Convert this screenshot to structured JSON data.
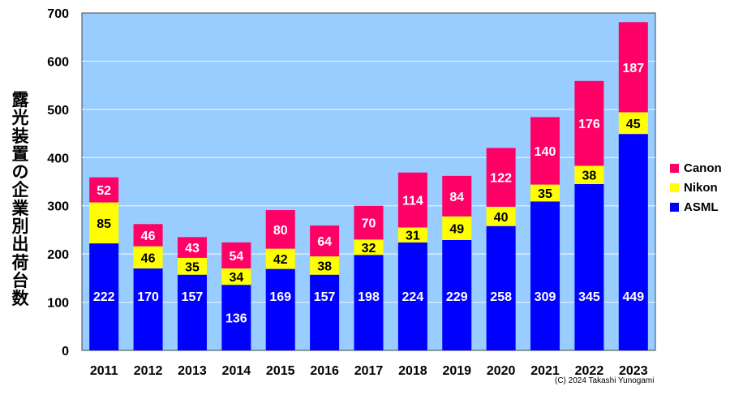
{
  "chart_data": {
    "type": "bar",
    "stacked": true,
    "title": "",
    "xlabel": "",
    "ylabel": "露光装置の企業別出荷台数",
    "ylim": [
      0,
      700
    ],
    "yticks": [
      0,
      100,
      200,
      300,
      400,
      500,
      600,
      700
    ],
    "grid": true,
    "legend_position": "right",
    "categories": [
      "2011",
      "2012",
      "2013",
      "2014",
      "2015",
      "2016",
      "2017",
      "2018",
      "2019",
      "2020",
      "2021",
      "2022",
      "2023"
    ],
    "series": [
      {
        "name": "ASML",
        "color": "#0000ff",
        "label_color": "#ffffff",
        "values": [
          222,
          170,
          157,
          136,
          169,
          157,
          198,
          224,
          229,
          258,
          309,
          345,
          449
        ]
      },
      {
        "name": "Nikon",
        "color": "#ffff00",
        "label_color": "#000000",
        "values": [
          85,
          46,
          35,
          34,
          42,
          38,
          32,
          31,
          49,
          40,
          35,
          38,
          45
        ]
      },
      {
        "name": "Canon",
        "color": "#ff0066",
        "label_color": "#ffffff",
        "values": [
          52,
          46,
          43,
          54,
          80,
          64,
          70,
          114,
          84,
          122,
          140,
          176,
          187
        ]
      }
    ],
    "legend": [
      "Canon",
      "Nikon",
      "ASML"
    ],
    "plot_background": "#99ccff",
    "annotation": "(C)  2024 Takashi Yunogami"
  }
}
